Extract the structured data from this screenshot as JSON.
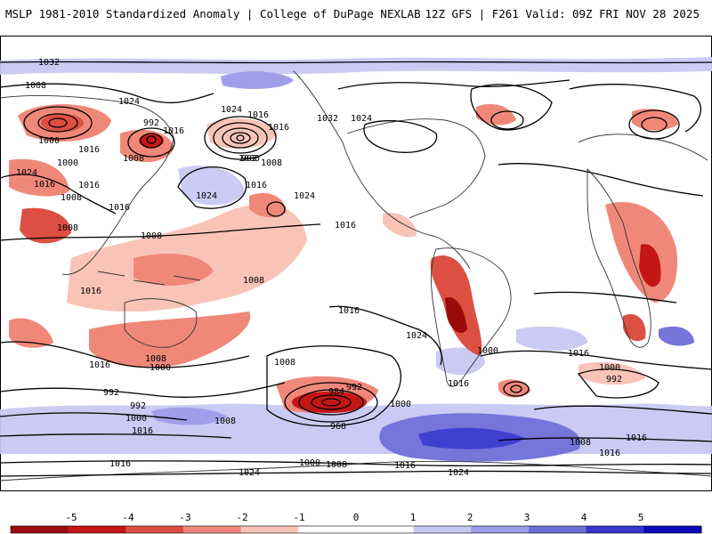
{
  "header": {
    "left": "MSLP 1981-2010 Standardized Anomaly | College of DuPage NEXLAB",
    "right": "12Z GFS | F261 Valid: 09Z FRI NOV 28 2025"
  },
  "colorbar": {
    "ticks": [
      "-5",
      "-4",
      "-3",
      "-2",
      "-1",
      "0",
      "1",
      "2",
      "3",
      "4",
      "5"
    ],
    "colors": [
      "#9b0b0b",
      "#c51616",
      "#dd4e43",
      "#f0887a",
      "#f8c4b8",
      "#ffffff",
      "#ffffff",
      "#c8c8f4",
      "#9a9ae8",
      "#6e6ed9",
      "#3535d0",
      "#0a0ab8"
    ]
  },
  "map": {
    "isobar_labels": [
      "1032",
      "1008",
      "1024",
      "1016",
      "1000",
      "992",
      "1016",
      "1008",
      "1024",
      "1016",
      "1032",
      "1024",
      "1016",
      "1008",
      "1000",
      "1016",
      "1000",
      "992",
      "1024",
      "1016",
      "1008",
      "1024",
      "1016",
      "1024",
      "1016",
      "1008",
      "1008",
      "1016",
      "1008",
      "1016",
      "1016",
      "1024",
      "1008",
      "1000",
      "1016",
      "992",
      "1008",
      "992",
      "984",
      "992",
      "1000",
      "968",
      "1016",
      "1008",
      "1000",
      "1016",
      "1016",
      "1000",
      "992",
      "1000",
      "1008",
      "1016",
      "1016",
      "1000",
      "1008",
      "1016",
      "1024",
      "1024",
      "1016"
    ],
    "anomaly_regions": [
      {
        "name": "siberia-negative-anomaly",
        "value": -3
      },
      {
        "name": "east-asia-negative-anomaly",
        "value": -4
      },
      {
        "name": "aleutian-low-negative-anomaly",
        "value": -2
      },
      {
        "name": "tropical-pacific-negative-anomaly",
        "value": -1
      },
      {
        "name": "south-pacific-low-negative-anomaly",
        "value": -4
      },
      {
        "name": "andes-negative-anomaly",
        "value": -4
      },
      {
        "name": "east-africa-negative-anomaly",
        "value": -4
      },
      {
        "name": "antarctic-ocean-positive-anomaly",
        "value": 3
      },
      {
        "name": "north-pacific-positive-anomaly",
        "value": 2
      },
      {
        "name": "south-atlantic-positive-anomaly",
        "value": 2
      }
    ]
  }
}
